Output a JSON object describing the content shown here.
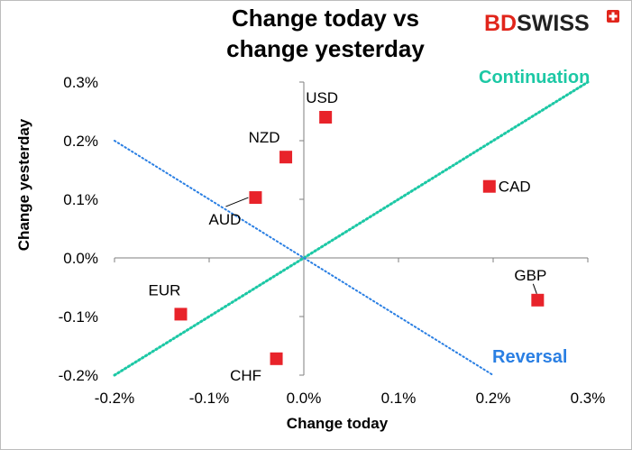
{
  "brand": {
    "name_part1": "BD",
    "name_part2": "SWISS",
    "color_part1": "#e1251b",
    "color_part2": "#222222",
    "badge_color": "#e1251b"
  },
  "chart_data": {
    "type": "scatter",
    "title_line1": "Change today vs",
    "title_line2": "change yesterday",
    "xlabel": "Change today",
    "ylabel": "Change yesterday",
    "xlim": [
      -0.2,
      0.3
    ],
    "ylim": [
      -0.2,
      0.3
    ],
    "x_ticks": [
      -0.2,
      -0.1,
      0.0,
      0.1,
      0.2,
      0.3
    ],
    "y_ticks": [
      -0.2,
      -0.1,
      0.0,
      0.1,
      0.2,
      0.3
    ],
    "x_tick_labels": [
      "-0.2%",
      "-0.1%",
      "0.0%",
      "0.1%",
      "0.2%",
      "0.3%"
    ],
    "y_tick_labels": [
      "-0.2%",
      "-0.1%",
      "0.0%",
      "0.1%",
      "0.2%",
      "0.3%"
    ],
    "marker_color": "#e8232a",
    "points": [
      {
        "label": "USD",
        "x": 0.023,
        "y": 0.24,
        "label_pos": "above"
      },
      {
        "label": "NZD",
        "x": -0.019,
        "y": 0.172,
        "label_pos": "upper-left"
      },
      {
        "label": "AUD",
        "x": -0.051,
        "y": 0.103,
        "label_pos": "lower-left-leader"
      },
      {
        "label": "CAD",
        "x": 0.196,
        "y": 0.122,
        "label_pos": "right"
      },
      {
        "label": "GBP",
        "x": 0.247,
        "y": -0.072,
        "label_pos": "above-leader"
      },
      {
        "label": "EUR",
        "x": -0.13,
        "y": -0.096,
        "label_pos": "above-left"
      },
      {
        "label": "CHF",
        "x": -0.029,
        "y": -0.172,
        "label_pos": "lower-left"
      }
    ],
    "lines": [
      {
        "name": "Continuation",
        "color": "#1cc8a5",
        "from": [
          -0.2,
          -0.2
        ],
        "to": [
          0.3,
          0.3
        ]
      },
      {
        "name": "Reversal",
        "color": "#2a7fe3",
        "from": [
          -0.2,
          0.2
        ],
        "to": [
          0.2,
          -0.2
        ]
      }
    ],
    "annotations": {
      "continuation": "Continuation",
      "reversal": "Reversal"
    }
  }
}
